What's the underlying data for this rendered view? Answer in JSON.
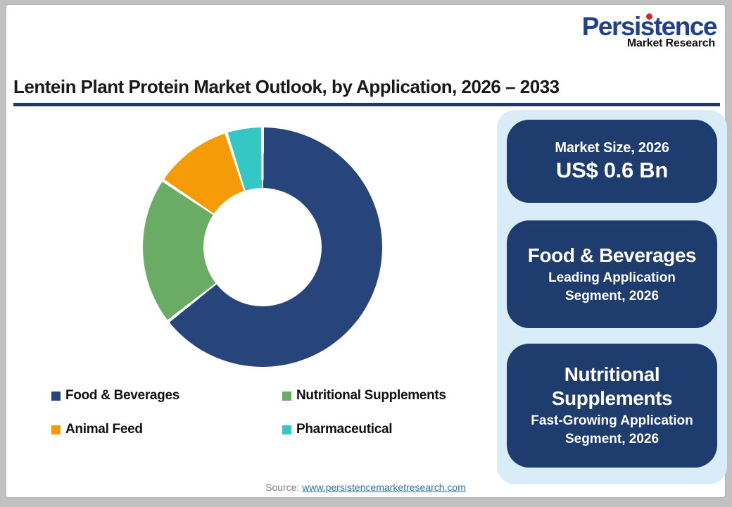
{
  "logo": {
    "brand": "Persistence",
    "sub": "Market Research",
    "brand_color": "#20418d",
    "dot_color": "#d9262c"
  },
  "header": {
    "title": "Lentein Plant Protein Market Outlook, by Application, 2026 – 2033",
    "rule_color": "#1f3864"
  },
  "chart_data": {
    "type": "pie",
    "subtype": "donut",
    "title": "Lentein Plant Protein Market Outlook, by Application, 2026 – 2033",
    "categories": [
      "Food & Beverages",
      "Nutritional Supplements",
      "Animal Feed",
      "Pharmaceutical"
    ],
    "values": [
      64.4,
      20.0,
      10.7,
      4.9
    ],
    "unit": "% share (estimated from arc angles)",
    "colors": [
      "#27457a",
      "#6bac64",
      "#f59b05",
      "#35c7c4"
    ],
    "start_angle_deg": 0,
    "direction": "clockwise",
    "inner_radius_ratio": 0.49,
    "segment_gap_deg": 1.5,
    "legend_position": "bottom"
  },
  "cards": [
    {
      "kicker": "Market Size, 2026",
      "big": "US$ 0.6 Bn"
    },
    {
      "title": "Food & Beverages",
      "sub1": "Leading Application",
      "sub2": "Segment, 2026"
    },
    {
      "title": "Nutritional Supplements",
      "sub1": "Fast-Growing Application",
      "sub2": "Segment, 2026"
    }
  ],
  "panel": {
    "background": "#d9edf8",
    "card_background": "#1f3c6e"
  },
  "footer": {
    "source_label": "Source:",
    "source_link": "www.persistencemarketresearch.com",
    "link_color": "#2e74b5"
  }
}
